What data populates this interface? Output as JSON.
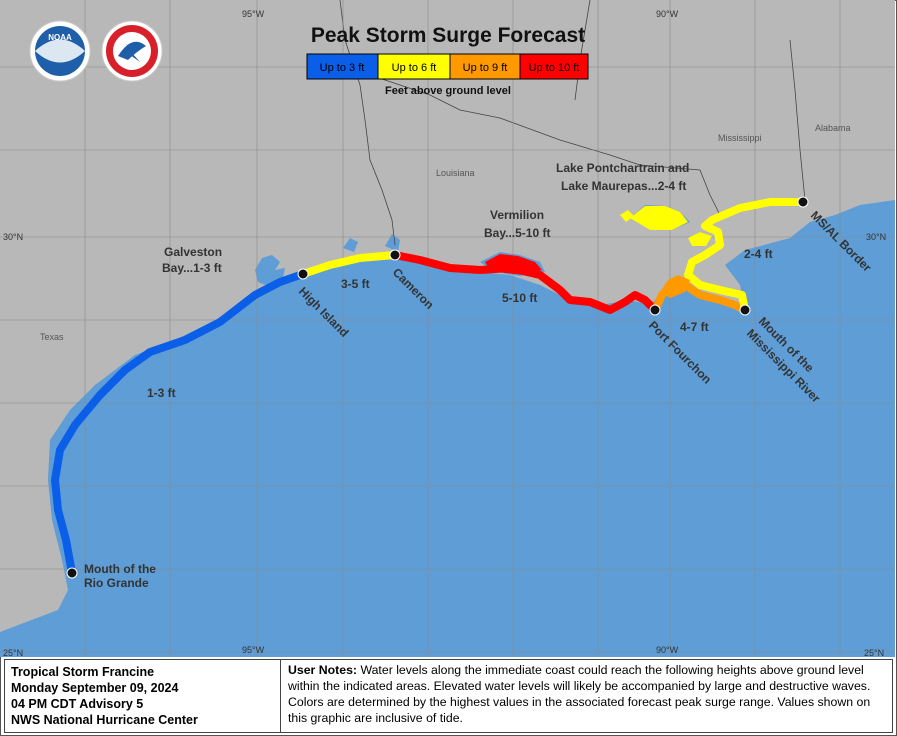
{
  "title": "Peak Storm Surge Forecast",
  "legend": {
    "items": [
      {
        "label": "Up to 3 ft",
        "color": "#0a5ee8"
      },
      {
        "label": "Up to 6 ft",
        "color": "#ffff00"
      },
      {
        "label": "Up to 9 ft",
        "color": "#ff9900"
      },
      {
        "label": "Up to 10 ft",
        "color": "#ff0000"
      }
    ],
    "subtitle": "Feet above ground level"
  },
  "gridlines": {
    "lon_top": [
      "95°W",
      "90°W"
    ],
    "lon_bottom": [
      "95°W",
      "90°W"
    ],
    "lat_left": [
      "30°N",
      "25°N"
    ],
    "lat_right": [
      "30°N",
      "25°N"
    ]
  },
  "states": [
    "Mississippi",
    "Alabama",
    "Louisiana",
    "Texas"
  ],
  "places": {
    "galveston_line1": "Galveston",
    "galveston_line2": "Bay...1-3 ft",
    "vermilion_line1": "Vermilion",
    "vermilion_line2": "Bay...5-10 ft",
    "pontchartrain_line1": "Lake Pontchartrain and",
    "pontchartrain_line2": "Lake Maurepas...2-4 ft",
    "high_island": "High Island",
    "cameron": "Cameron",
    "port_fourchon": "Port Fourchon",
    "mouth_miss_line1": "Mouth of the",
    "mouth_miss_line2": "Mississippi River",
    "ms_al_border": "MS/AL Border",
    "rio_line1": "Mouth of the",
    "rio_line2": "Rio Grande"
  },
  "segments": {
    "seg_1_3": "1-3 ft",
    "seg_3_5": "3-5 ft",
    "seg_5_10": "5-10 ft",
    "seg_4_7": "4-7 ft",
    "seg_2_4": "2-4 ft"
  },
  "logos": {
    "noaa": "NOAA",
    "nws": "NATIONAL WEATHER SERVICE"
  },
  "footer": {
    "storm_name": "Tropical Storm Francine",
    "date": "Monday September 09, 2024",
    "advisory": "04 PM CDT Advisory 5",
    "center": "NWS National Hurricane Center",
    "notes_label": "User Notes:",
    "notes_text": " Water levels along the immediate coast could reach the following heights above ground level within the indicated areas. Elevated water levels will likely be accompanied by large and destructive waves. Colors are determined by the highest values in the associated forecast peak surge range. Values shown on this graphic are inclusive of tide."
  },
  "colors": {
    "land": "#b8b8b8",
    "water": "#5e9dd6",
    "blue": "#0a5ee8",
    "yellow": "#ffff00",
    "orange": "#ff9900",
    "red": "#ff0000"
  }
}
